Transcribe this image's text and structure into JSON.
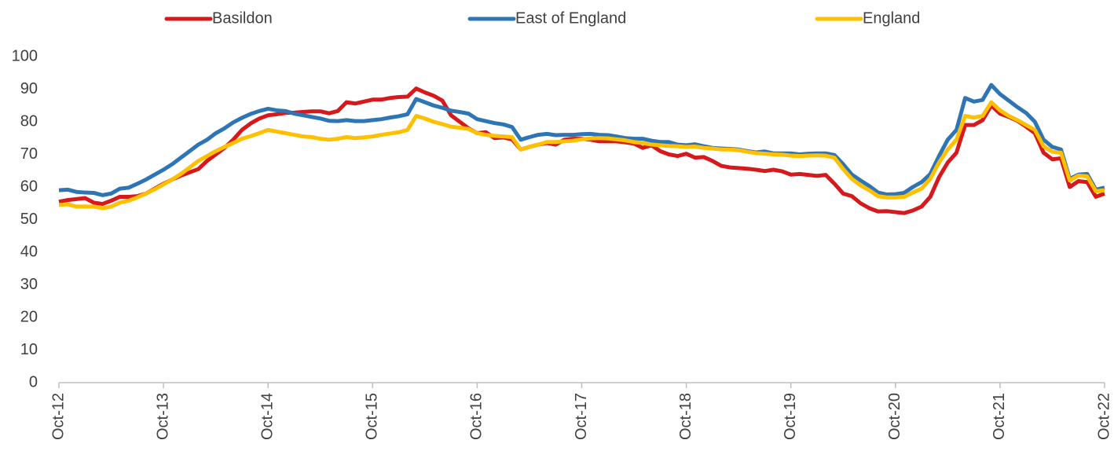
{
  "chart_data": {
    "type": "line",
    "categories": [
      "Oct-12",
      null,
      null,
      null,
      null,
      null,
      null,
      null,
      null,
      null,
      null,
      null,
      "Oct-13",
      null,
      null,
      null,
      null,
      null,
      null,
      null,
      null,
      null,
      null,
      null,
      "Oct-14",
      null,
      null,
      null,
      null,
      null,
      null,
      null,
      null,
      null,
      null,
      null,
      "Oct-15",
      null,
      null,
      null,
      null,
      null,
      null,
      null,
      null,
      null,
      null,
      null,
      "Oct-16",
      null,
      null,
      null,
      null,
      null,
      null,
      null,
      null,
      null,
      null,
      null,
      "Oct-17",
      null,
      null,
      null,
      null,
      null,
      null,
      null,
      null,
      null,
      null,
      null,
      "Oct-18",
      null,
      null,
      null,
      null,
      null,
      null,
      null,
      null,
      null,
      null,
      null,
      "Oct-19",
      null,
      null,
      null,
      null,
      null,
      null,
      null,
      null,
      null,
      null,
      null,
      "Oct-20",
      null,
      null,
      null,
      null,
      null,
      null,
      null,
      null,
      null,
      null,
      null,
      "Oct-21",
      null,
      null,
      null,
      null,
      null,
      null,
      null,
      null,
      null,
      null,
      null,
      "Oct-22"
    ],
    "series": [
      {
        "name": "Basildon",
        "color": "#d7191c",
        "values": [
          55.5,
          56,
          56.3,
          56.6,
          55.2,
          54.8,
          55.8,
          57,
          57,
          57.2,
          58,
          59.5,
          61,
          62.3,
          63.5,
          64.5,
          65.5,
          68,
          70,
          72,
          74.5,
          77.5,
          79.5,
          81,
          82,
          82.3,
          82.7,
          82.8,
          83,
          83.2,
          83.2,
          82.6,
          83.3,
          86,
          85.6,
          86.2,
          86.8,
          86.8,
          87.3,
          87.6,
          87.7,
          90.2,
          89,
          88,
          86.5,
          82,
          80,
          78,
          76.5,
          76.8,
          75,
          75.2,
          74.6,
          71.5,
          72.3,
          73,
          73.5,
          73,
          74.5,
          74.8,
          74.8,
          74.5,
          74,
          74,
          74,
          73.7,
          73.3,
          72,
          72.8,
          71,
          70,
          69.5,
          70.2,
          69,
          69.2,
          68,
          66.5,
          66,
          65.8,
          65.6,
          65.3,
          64.9,
          65.3,
          64.8,
          63.8,
          64,
          63.7,
          63.4,
          63.7,
          61,
          58,
          57.2,
          55,
          53.5,
          52.5,
          52.6,
          52.3,
          52,
          52.8,
          54,
          57,
          63,
          67.5,
          70.5,
          79,
          79,
          80.5,
          85,
          82.5,
          81.5,
          80.3,
          78.5,
          76.5,
          70.5,
          68.5,
          68.8,
          60,
          61.8,
          61.5,
          57,
          58
        ]
      },
      {
        "name": "East of England",
        "color": "#2e75b6",
        "values": [
          59,
          59.2,
          58.5,
          58.3,
          58.2,
          57.5,
          58,
          59.5,
          59.8,
          61,
          62.3,
          63.8,
          65.3,
          67,
          69,
          71,
          73,
          74.5,
          76.5,
          78,
          79.8,
          81.2,
          82.4,
          83.3,
          84,
          83.5,
          83.3,
          82.5,
          82,
          81.5,
          81,
          80.3,
          80.2,
          80.5,
          80.2,
          80.2,
          80.5,
          80.8,
          81.3,
          81.7,
          82.3,
          87,
          86,
          85,
          84.3,
          83.4,
          83,
          82.5,
          80.8,
          80.2,
          79.6,
          79.2,
          78.4,
          74.5,
          75.3,
          76,
          76.3,
          75.9,
          76,
          76,
          76.2,
          76.3,
          76,
          75.9,
          75.5,
          75,
          74.8,
          74.8,
          74.2,
          73.8,
          73.8,
          73,
          72.8,
          73.1,
          72.5,
          72,
          71.8,
          71.7,
          71.5,
          71,
          70.6,
          70.9,
          70.3,
          70.3,
          70.3,
          70,
          70.2,
          70.3,
          70.3,
          69.8,
          67,
          63.8,
          62,
          60.3,
          58.3,
          57.7,
          57.8,
          58.2,
          60,
          61.5,
          64,
          69.5,
          74.5,
          77.5,
          87.3,
          86.2,
          86.7,
          91.3,
          88.5,
          86.5,
          84.5,
          82.7,
          80,
          74.5,
          72.3,
          71.5,
          62.5,
          63.8,
          64,
          59.2,
          59.8
        ]
      },
      {
        "name": "England",
        "color": "#ffc000",
        "values": [
          54.5,
          54.7,
          54,
          54,
          54,
          53.5,
          54,
          55.2,
          55.8,
          56.8,
          58,
          59.3,
          60.8,
          62.3,
          64,
          66,
          68,
          69.5,
          71,
          72.3,
          73.5,
          74.8,
          75.6,
          76.5,
          77.5,
          77,
          76.5,
          76,
          75.5,
          75.3,
          74.8,
          74.5,
          74.8,
          75.3,
          75,
          75.2,
          75.5,
          76,
          76.4,
          76.8,
          77.5,
          81.8,
          81,
          80,
          79.3,
          78.5,
          78.2,
          77.8,
          76.5,
          76,
          75.7,
          75.5,
          75.3,
          71.5,
          72.3,
          73,
          73.8,
          73.8,
          74,
          74.2,
          74.6,
          74.9,
          75,
          74.9,
          74.6,
          74.3,
          73.8,
          73.5,
          73,
          72.8,
          72.6,
          72.5,
          72.3,
          72.4,
          72,
          71.8,
          71.5,
          71.5,
          71.3,
          70.8,
          70.4,
          70.2,
          70,
          69.9,
          69.6,
          69.5,
          69.6,
          69.7,
          69.6,
          69,
          65.5,
          62.5,
          60.5,
          59,
          57.2,
          56.8,
          56.8,
          57,
          58.3,
          59.5,
          62.5,
          67.5,
          71.5,
          74.5,
          81.8,
          81.3,
          81.8,
          86,
          83.5,
          81.8,
          80.5,
          79,
          77.5,
          72.5,
          70.8,
          70.5,
          62,
          63.5,
          63.3,
          58.7,
          59
        ]
      }
    ],
    "ylim": [
      0,
      100
    ],
    "yticks": [
      0,
      10,
      20,
      30,
      40,
      50,
      60,
      70,
      80,
      90,
      100
    ],
    "grid": false,
    "legend": "top"
  }
}
